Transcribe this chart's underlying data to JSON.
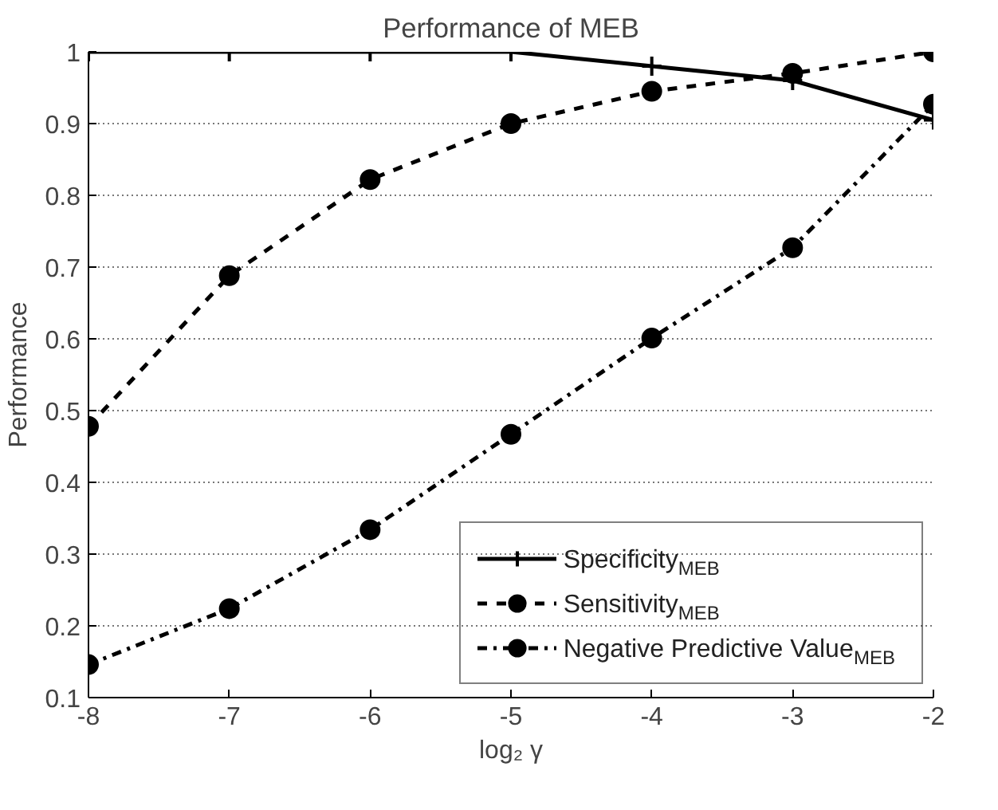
{
  "chart_data": {
    "type": "line",
    "title": "Performance of MEB",
    "xlabel": "log₂ γ",
    "ylabel": "Performance",
    "x": [
      -8,
      -7,
      -6,
      -5,
      -4,
      -3,
      -2
    ],
    "xlim": [
      -8,
      -2
    ],
    "xticks": [
      -8,
      -7,
      -6,
      -5,
      -4,
      -3,
      -2
    ],
    "ylim": [
      0.1,
      1.0
    ],
    "yticks": [
      0.1,
      0.2,
      0.3,
      0.4,
      0.5,
      0.6,
      0.7,
      0.8,
      0.9,
      1
    ],
    "grid": "y",
    "legend": "bottom right",
    "series": [
      {
        "name": "Specificity$_{MEB}$",
        "color": "#000000",
        "marker": "cross",
        "line_style": "solid",
        "values": [
          1.0,
          1.0,
          1.0,
          1.0,
          0.98,
          0.96,
          0.905
        ]
      },
      {
        "name": "Sensitivity$_{MEB}$",
        "color": "#000000",
        "marker": "circle",
        "line_style": "dashed",
        "values": [
          0.478,
          0.688,
          0.822,
          0.9,
          0.945,
          0.97,
          1.0
        ]
      },
      {
        "name": "Negative Predictive Value$_{MEB}$",
        "color": "#000000",
        "marker": "circle",
        "line_style": "dashdot",
        "values": [
          0.146,
          0.224,
          0.334,
          0.467,
          0.601,
          0.727,
          0.927
        ]
      }
    ]
  }
}
